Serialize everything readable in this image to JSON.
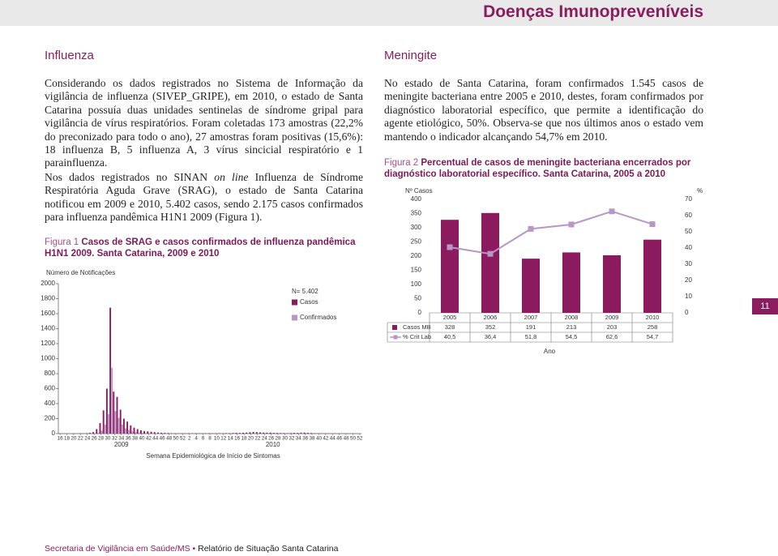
{
  "header": {
    "title": "Doenças Imunopreveníveis"
  },
  "influenza": {
    "heading": "Influenza",
    "p1": "Considerando os dados registrados no Sistema de Informação da vigilância de influenza (SIVEP_GRIPE), em 2010, o estado de Santa Catarina possuía duas unidades sentinelas de síndrome gripal para vigilância de vírus respiratórios. Foram coletadas 173 amostras (22,2% do preconizado para todo o ano), 27 amostras foram positivas (15,6%): 18 influenza B, 5 influenza A, 3 vírus sincicial respiratório e 1 parainfluenza.",
    "p2": [
      "Nos dados registrados no SINAN ",
      "on line",
      " Influenza de Síndrome Respiratória Aguda Grave (SRAG), o estado de Santa Catarina notificou em 2009 e 2010, 5.402 casos, sendo 2.175 casos confirmados para influenza pandêmica H1N1 2009 (Figura 1)."
    ]
  },
  "meningite": {
    "heading": "Meningite",
    "p1": "No estado de Santa Catarina, foram confirmados 1.545 casos de meningite bacteriana entre 2005 e 2010, destes, foram confirmados por diagnóstico laboratorial específico, que permite a identificação do agente etiológico, 50%. Observa-se que nos últimos anos o estado vem mantendo o indicador alcançando 54,7% em 2010."
  },
  "page_number": "11",
  "footer": {
    "left": "Secretaria de Vigilância em Saúde/MS",
    "sep": "•",
    "middle": "Relatório de Situação",
    "right": "Santa Catarina"
  },
  "chart_data": [
    {
      "type": "bar",
      "title_label": "Figura 1",
      "title": "Casos de SRAG e casos confirmados de influenza pandêmica H1N1 2009. Santa Catarina, 2009 e 2010",
      "y_label": "Número de Notificações",
      "x_label": "Semana Epidemiológica de Início de Sintomas",
      "annotation": "N= 5.402",
      "group_labels": [
        "2009",
        "2010"
      ],
      "categories": [
        16,
        null,
        18,
        null,
        20,
        null,
        22,
        null,
        24,
        null,
        26,
        null,
        28,
        null,
        30,
        null,
        32,
        null,
        34,
        null,
        36,
        null,
        38,
        null,
        40,
        null,
        42,
        null,
        44,
        null,
        46,
        null,
        48,
        null,
        50,
        null,
        52,
        null,
        2,
        null,
        4,
        null,
        6,
        null,
        8,
        null,
        10,
        null,
        12,
        null,
        14,
        null,
        16,
        null,
        18,
        null,
        20,
        null,
        22,
        null,
        24,
        null,
        26,
        null,
        28,
        null,
        30,
        null,
        32,
        null,
        34,
        null,
        36,
        null,
        38,
        null,
        40,
        null,
        42,
        null,
        44,
        null,
        46,
        null,
        48,
        null,
        50,
        null,
        52
      ],
      "series": [
        {
          "name": "Casos",
          "color": "#8b1a5e",
          "values": [
            0,
            0,
            1,
            0,
            2,
            1,
            3,
            4,
            6,
            10,
            20,
            60,
            140,
            310,
            600,
            1680,
            560,
            490,
            320,
            200,
            160,
            110,
            80,
            60,
            45,
            35,
            30,
            25,
            20,
            15,
            12,
            10,
            8,
            6,
            5,
            4,
            4,
            5,
            6,
            4,
            5,
            3,
            4,
            5,
            6,
            4,
            5,
            6,
            5,
            7,
            6,
            8,
            10,
            9,
            12,
            14,
            18,
            22,
            20,
            16,
            14,
            12,
            13,
            10,
            9,
            8,
            7,
            6,
            8,
            10,
            9,
            12,
            14,
            10,
            8,
            6,
            5,
            4,
            3,
            3,
            2,
            2,
            3,
            2,
            1,
            2,
            1,
            1,
            0
          ]
        },
        {
          "name": "Confirmados",
          "color": "#b896c6",
          "values": [
            0,
            0,
            0,
            0,
            0,
            0,
            0,
            0,
            0,
            2,
            5,
            10,
            40,
            120,
            260,
            880,
            300,
            210,
            120,
            70,
            50,
            30,
            20,
            15,
            10,
            8,
            6,
            5,
            4,
            3,
            2,
            2,
            1,
            1,
            1,
            0,
            0,
            0,
            0,
            0,
            0,
            0,
            0,
            0,
            0,
            0,
            0,
            0,
            0,
            0,
            0,
            0,
            1,
            0,
            2,
            3,
            2,
            3,
            1,
            0,
            1,
            0,
            0,
            0,
            0,
            0,
            0,
            0,
            0,
            0,
            0,
            0,
            0,
            0,
            0,
            0,
            0,
            0,
            0,
            0,
            0,
            0,
            0,
            0,
            0,
            0,
            0,
            0,
            0
          ]
        }
      ],
      "ylim": [
        0,
        2000
      ],
      "yticks": [
        0,
        200,
        400,
        600,
        800,
        1000,
        1200,
        1400,
        1600,
        1800,
        2000
      ]
    },
    {
      "type": "bar_line",
      "title_label": "Figura 2",
      "title": "Percentual de casos de meningite bacteriana encerrados por diagnóstico laboratorial específico. Santa Catarina, 2005 a 2010",
      "y_label": "Nº Casos",
      "y2_label": "%",
      "x_label": "Ano",
      "categories": [
        "2005",
        "2006",
        "2007",
        "2008",
        "2009",
        "2010"
      ],
      "series": [
        {
          "name": "Casos MB",
          "color": "#8b1a5e",
          "values": [
            328,
            352,
            191,
            213,
            203,
            258
          ]
        },
        {
          "name": "% Crit Lab",
          "color": "#b896c6",
          "axis": "y2",
          "values": [
            40.5,
            36.4,
            51.8,
            54.5,
            62.6,
            54.7
          ],
          "value_labels": [
            "40,5",
            "36,4",
            "51,8",
            "54,5",
            "62,6",
            "54,7"
          ]
        }
      ],
      "ylim": [
        0,
        400
      ],
      "yticks": [
        0,
        50,
        100,
        150,
        200,
        250,
        300,
        350,
        400
      ],
      "y2lim": [
        0,
        70
      ],
      "y2ticks": [
        0,
        10,
        20,
        30,
        40,
        50,
        60,
        70
      ]
    }
  ]
}
